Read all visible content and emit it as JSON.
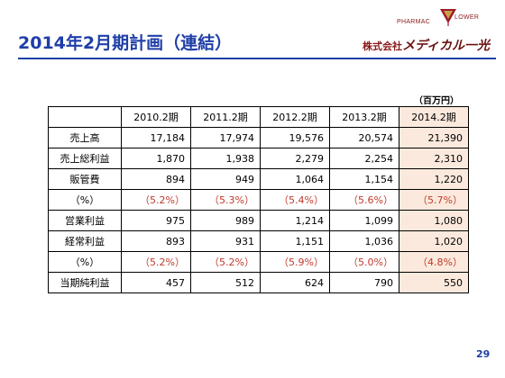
{
  "slide": {
    "title": "2014年2月期計画（連結）",
    "unit_note": "（百万円）",
    "page_number": "29"
  },
  "logo": {
    "pharmac": "PHARMAC",
    "lower": "LOWER",
    "company_prefix": "株式会社",
    "company_brand": "メディカル一光"
  },
  "table": {
    "periods": [
      "2010.2期",
      "2011.2期",
      "2012.2期",
      "2013.2期",
      "2014.2期"
    ],
    "highlight_color": "#fbe9dd",
    "rows": [
      {
        "label": "売上高",
        "values": [
          "17,184",
          "17,974",
          "19,576",
          "20,574",
          "21,390"
        ]
      },
      {
        "label": "売上総利益",
        "values": [
          "1,870",
          "1,938",
          "2,279",
          "2,254",
          "2,310"
        ]
      },
      {
        "label": "販管費",
        "values": [
          "894",
          "949",
          "1,064",
          "1,154",
          "1,220"
        ]
      },
      {
        "label": "（%）",
        "values": [
          "（5.2%）",
          "（5.3%）",
          "（5.4%）",
          "（5.6%）",
          "（5.7%）"
        ],
        "percent": true
      },
      {
        "label": "営業利益",
        "values": [
          "975",
          "989",
          "1,214",
          "1,099",
          "1,080"
        ]
      },
      {
        "label": "経常利益",
        "values": [
          "893",
          "931",
          "1,151",
          "1,036",
          "1,020"
        ]
      },
      {
        "label": "（%）",
        "values": [
          "（5.2%）",
          "（5.2%）",
          "（5.9%）",
          "（5.0%）",
          "（4.8%）"
        ],
        "percent": true
      },
      {
        "label": "当期純利益",
        "values": [
          "457",
          "512",
          "624",
          "790",
          "550"
        ]
      }
    ]
  }
}
